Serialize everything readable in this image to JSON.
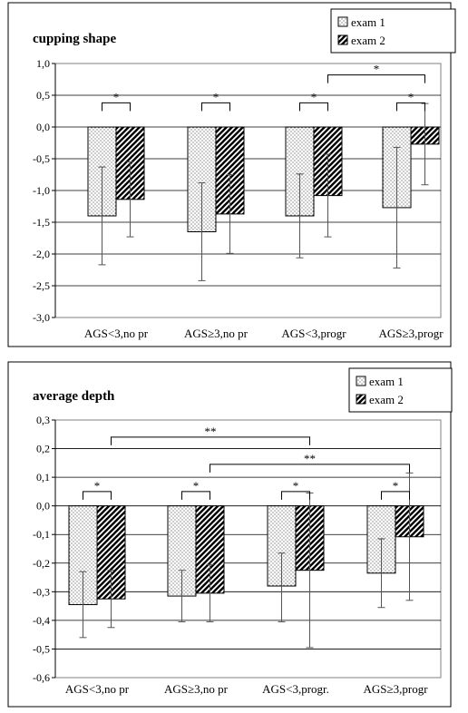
{
  "chart_data": [
    {
      "type": "bar",
      "title": "cupping shape",
      "categories": [
        "AGS<3,no pr",
        "AGS≥3,no pr",
        "AGS<3,progr",
        "AGS≥3,progr"
      ],
      "ylim": [
        -3.0,
        1.0
      ],
      "yticks": [
        1.0,
        0.5,
        0.0,
        -0.5,
        -1.0,
        -1.5,
        -2.0,
        -2.5,
        -3.0
      ],
      "ytick_labels": [
        "1,0",
        "0,5",
        "0,0",
        "-0,5",
        "-1,0",
        "-1,5",
        "-2,0",
        "-2,5",
        "-3,0"
      ],
      "grid": true,
      "legend": "top-right",
      "series": [
        {
          "name": "exam 1",
          "pattern": "dotted",
          "values": [
            -1.4,
            -1.65,
            -1.4,
            -1.27
          ],
          "err_low": [
            -2.17,
            -2.42,
            -2.06,
            -2.22
          ],
          "err_high": [
            -0.63,
            -0.88,
            -0.74,
            -0.32
          ]
        },
        {
          "name": "exam 2",
          "pattern": "hatched",
          "values": [
            -1.14,
            -1.37,
            -1.08,
            -0.27
          ],
          "err_low": [
            -1.73,
            -1.99,
            -1.73,
            -0.91
          ],
          "err_high": [
            -0.55,
            -0.75,
            -0.43,
            0.37
          ]
        }
      ],
      "significance": [
        {
          "from": [
            0,
            0
          ],
          "to": [
            0,
            1
          ],
          "label": "*",
          "y": 0.38
        },
        {
          "from": [
            1,
            0
          ],
          "to": [
            1,
            1
          ],
          "label": "*",
          "y": 0.38
        },
        {
          "from": [
            2,
            0
          ],
          "to": [
            2,
            1
          ],
          "label": "*",
          "y": 0.38
        },
        {
          "from": [
            3,
            0
          ],
          "to": [
            3,
            1
          ],
          "label": "*",
          "y": 0.38
        },
        {
          "from": [
            2,
            1
          ],
          "to": [
            3,
            1
          ],
          "label": "*",
          "y": 0.82
        }
      ]
    },
    {
      "type": "bar",
      "title": "average depth",
      "categories": [
        "AGS<3,no pr",
        "AGS≥3,no pr",
        "AGS<3,progr.",
        "AGS≥3,progr"
      ],
      "ylim": [
        -0.6,
        0.3
      ],
      "yticks": [
        0.3,
        0.2,
        0.1,
        0.0,
        -0.1,
        -0.2,
        -0.3,
        -0.4,
        -0.5,
        -0.6
      ],
      "ytick_labels": [
        "0,3",
        "0,2",
        "0,1",
        "0,0",
        "-0,1",
        "-0,2",
        "-0,3",
        "-0,4",
        "-0,5",
        "-0,6"
      ],
      "grid": true,
      "legend": "top-right",
      "series": [
        {
          "name": "exam 1",
          "pattern": "dotted",
          "values": [
            -0.345,
            -0.315,
            -0.28,
            -0.235
          ],
          "err_low": [
            -0.46,
            -0.405,
            -0.405,
            -0.355
          ],
          "err_high": [
            -0.23,
            -0.225,
            -0.165,
            -0.115
          ]
        },
        {
          "name": "exam 2",
          "pattern": "hatched",
          "values": [
            -0.325,
            -0.305,
            -0.225,
            -0.108
          ],
          "err_low": [
            -0.425,
            -0.405,
            -0.495,
            -0.33
          ],
          "err_high": [
            -0.225,
            -0.205,
            0.045,
            0.115
          ]
        }
      ],
      "significance": [
        {
          "from": [
            0,
            0
          ],
          "to": [
            0,
            1
          ],
          "label": "*",
          "y": 0.05
        },
        {
          "from": [
            1,
            0
          ],
          "to": [
            1,
            1
          ],
          "label": "*",
          "y": 0.05
        },
        {
          "from": [
            2,
            0
          ],
          "to": [
            2,
            1
          ],
          "label": "*",
          "y": 0.05
        },
        {
          "from": [
            3,
            0
          ],
          "to": [
            3,
            1
          ],
          "label": "*",
          "y": 0.05
        },
        {
          "from": [
            0,
            1
          ],
          "to": [
            2,
            1
          ],
          "label": "**",
          "y": 0.24
        },
        {
          "from": [
            1,
            1
          ],
          "to": [
            3,
            1
          ],
          "label": "**",
          "y": 0.145
        }
      ]
    }
  ]
}
